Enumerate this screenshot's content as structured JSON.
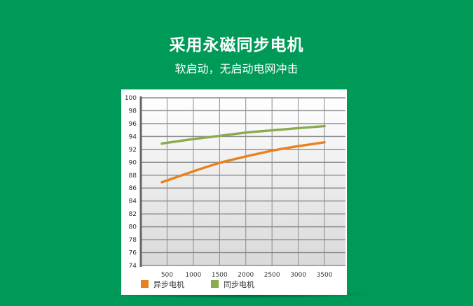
{
  "title": "采用永磁同步电机",
  "subtitle": "软启动，无启动电网冲击",
  "colors": {
    "background": "#009a58",
    "async_motor": "#e8821e",
    "sync_motor": "#8aab4e",
    "grid": "#8a8a8a"
  },
  "chart_data": {
    "type": "line",
    "title": "",
    "xlabel": "",
    "ylabel": "",
    "x_ticks": [
      "500",
      "1000",
      "1500",
      "2000",
      "2500",
      "3000",
      "3500"
    ],
    "y_ticks": [
      "74",
      "76",
      "78",
      "80",
      "82",
      "84",
      "86",
      "88",
      "90",
      "92",
      "94",
      "96",
      "98",
      "100"
    ],
    "xlim": [
      0,
      3900
    ],
    "ylim": [
      74,
      100
    ],
    "grid": true,
    "legend_position": "bottom-left",
    "series": [
      {
        "name": "异步电机",
        "color": "#e8821e",
        "x": [
          400,
          1000,
          1500,
          2000,
          2500,
          3000,
          3500
        ],
        "y": [
          86.9,
          88.6,
          89.9,
          90.9,
          91.8,
          92.5,
          93.1
        ]
      },
      {
        "name": "同步电机",
        "color": "#8aab4e",
        "x": [
          400,
          1000,
          1500,
          2000,
          2500,
          3000,
          3500
        ],
        "y": [
          92.9,
          93.6,
          94.1,
          94.6,
          94.95,
          95.3,
          95.6
        ]
      }
    ]
  }
}
